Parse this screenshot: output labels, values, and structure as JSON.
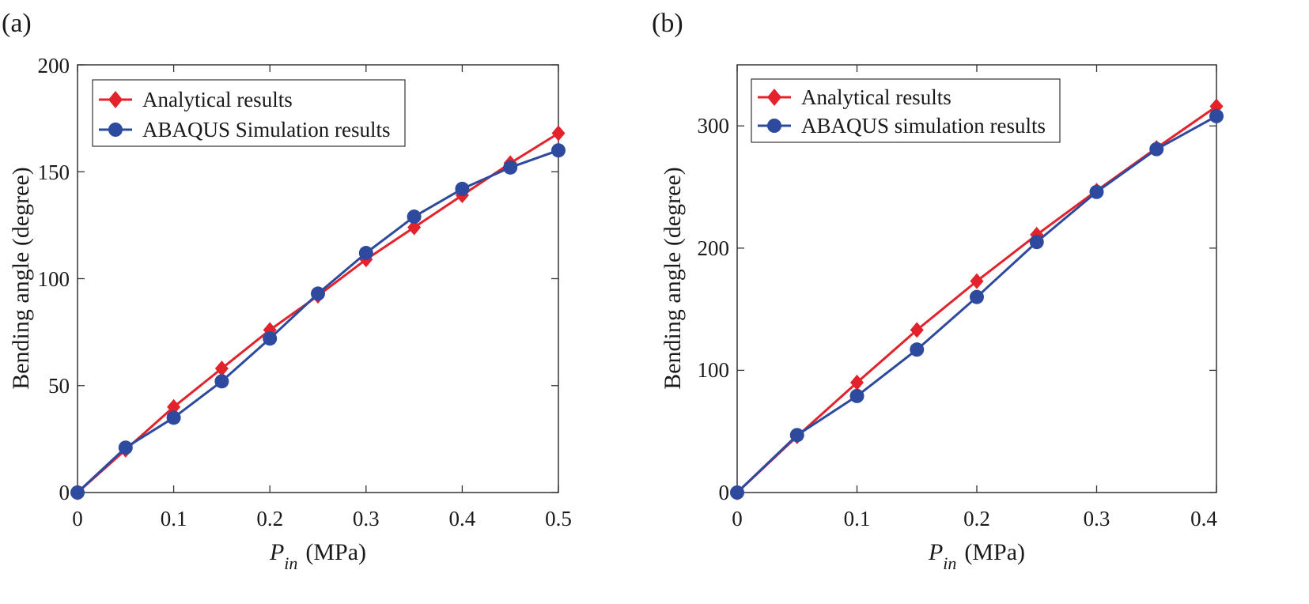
{
  "chart_data": [
    {
      "panel": "(a)",
      "type": "line",
      "xlabel_main": "P",
      "xlabel_sub": "in",
      "xlabel_unit": "(MPa)",
      "ylabel": "Bending angle (degree)",
      "xlim": [
        0,
        0.5
      ],
      "ylim": [
        0,
        200
      ],
      "xticks": [
        0,
        0.1,
        0.2,
        0.3,
        0.4,
        0.5
      ],
      "xtick_labels": [
        "0",
        "0.1",
        "0.2",
        "0.3",
        "0.4",
        "0.5"
      ],
      "yticks": [
        0,
        50,
        100,
        150,
        200
      ],
      "ytick_labels": [
        "0",
        "50",
        "100",
        "150",
        "200"
      ],
      "legend_position": "top-left",
      "series": [
        {
          "name": "Analytical results",
          "color": "#e3222b",
          "marker": "diamond",
          "x": [
            0,
            0.05,
            0.1,
            0.15,
            0.2,
            0.25,
            0.3,
            0.35,
            0.4,
            0.45,
            0.5
          ],
          "y": [
            0,
            20,
            40,
            58,
            76,
            92,
            109,
            124,
            139,
            154,
            168
          ]
        },
        {
          "name": "ABAQUS Simulation results",
          "color": "#2e4a9e",
          "marker": "circle",
          "x": [
            0,
            0.05,
            0.1,
            0.15,
            0.2,
            0.25,
            0.3,
            0.35,
            0.4,
            0.45,
            0.5
          ],
          "y": [
            0,
            21,
            35,
            52,
            72,
            93,
            112,
            129,
            142,
            152,
            160
          ]
        }
      ]
    },
    {
      "panel": "(b)",
      "type": "line",
      "xlabel_main": "P",
      "xlabel_sub": "in",
      "xlabel_unit": "(MPa)",
      "ylabel": "Bending angle (degree)",
      "xlim": [
        0,
        0.4
      ],
      "ylim": [
        0,
        350
      ],
      "xticks": [
        0,
        0.1,
        0.2,
        0.3,
        0.4
      ],
      "xtick_labels": [
        "0",
        "0.1",
        "0.2",
        "0.3",
        "0.4"
      ],
      "yticks": [
        0,
        100,
        200,
        300
      ],
      "ytick_labels": [
        "0",
        "100",
        "200",
        "300"
      ],
      "legend_position": "top-left",
      "series": [
        {
          "name": "Analytical results",
          "color": "#e3222b",
          "marker": "diamond",
          "x": [
            0,
            0.05,
            0.1,
            0.15,
            0.2,
            0.25,
            0.3,
            0.35,
            0.4
          ],
          "y": [
            0,
            46,
            90,
            133,
            173,
            211,
            247,
            282,
            316
          ]
        },
        {
          "name": "ABAQUS simulation results",
          "color": "#2e4a9e",
          "marker": "circle",
          "x": [
            0,
            0.05,
            0.1,
            0.15,
            0.2,
            0.25,
            0.3,
            0.35,
            0.4
          ],
          "y": [
            0,
            47,
            79,
            117,
            160,
            205,
            246,
            281,
            308
          ]
        }
      ]
    }
  ]
}
